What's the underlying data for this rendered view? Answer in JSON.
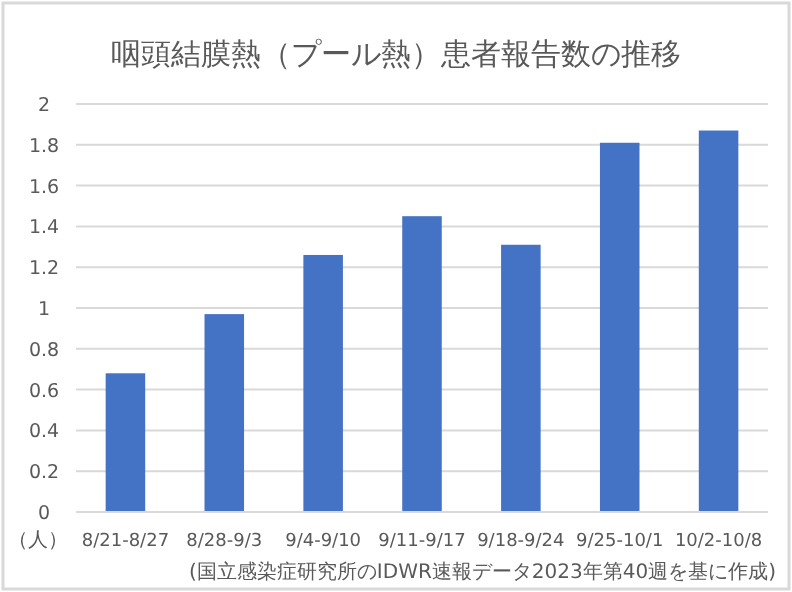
{
  "chart_data": {
    "type": "bar",
    "title": "咽頭結膜熱（プール熱）患者報告数の推移",
    "ylabel": "（人）",
    "categories": [
      "8/21-8/27",
      "8/28-9/3",
      "9/4-9/10",
      "9/11-9/17",
      "9/18-9/24",
      "9/25-10/1",
      "10/2-10/8"
    ],
    "values": [
      0.68,
      0.97,
      1.26,
      1.45,
      1.31,
      1.81,
      1.87
    ],
    "color": "#4472c4",
    "ylim": [
      0,
      2
    ],
    "yticks": [
      0,
      0.2,
      0.4,
      0.6,
      0.8,
      1,
      1.2,
      1.4,
      1.6,
      1.8,
      2
    ],
    "grid": "y",
    "annotations": [
      "(国立感染症研究所のIDWR速報データ2023年第40週を基に作成)"
    ]
  }
}
